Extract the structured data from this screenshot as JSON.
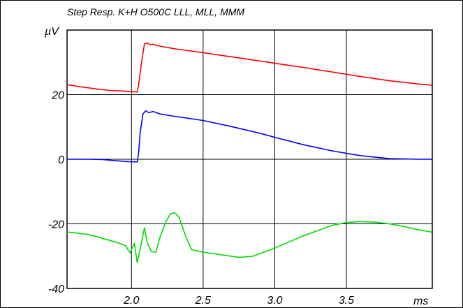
{
  "chart_data": {
    "type": "line",
    "title": "Step Resp. K+H O500C LLL, MLL, MMM",
    "ylabel": "µV",
    "xlabel": "ms",
    "xlim": [
      1.55,
      4.1
    ],
    "ylim": [
      -40,
      40
    ],
    "x_ticks": [
      2.0,
      2.5,
      3.0,
      3.5
    ],
    "x_tick_labels": [
      "2.0",
      "2.5",
      "3.0",
      "3.5"
    ],
    "y_ticks": [
      20,
      0,
      -20,
      -40
    ],
    "y_tick_labels": [
      "20",
      "0",
      "-20",
      "-40"
    ],
    "grid": true,
    "series": [
      {
        "color": "#ff0000",
        "points": [
          [
            1.55,
            23.1
          ],
          [
            1.65,
            22.4
          ],
          [
            1.75,
            21.8
          ],
          [
            1.85,
            21.3
          ],
          [
            1.95,
            21.1
          ],
          [
            2.04,
            20.8
          ],
          [
            2.05,
            23.0
          ],
          [
            2.07,
            30.0
          ],
          [
            2.09,
            35.7
          ],
          [
            2.11,
            36.0
          ],
          [
            2.13,
            35.5
          ],
          [
            2.15,
            35.6
          ],
          [
            2.2,
            35.0
          ],
          [
            2.3,
            34.2
          ],
          [
            2.5,
            33.0
          ],
          [
            2.7,
            31.7
          ],
          [
            2.9,
            30.4
          ],
          [
            3.0,
            29.7
          ],
          [
            3.2,
            28.4
          ],
          [
            3.4,
            27.0
          ],
          [
            3.6,
            25.6
          ],
          [
            3.8,
            24.3
          ],
          [
            4.0,
            23.3
          ],
          [
            4.1,
            22.9
          ]
        ]
      },
      {
        "color": "#0000ff",
        "points": [
          [
            1.55,
            0.0
          ],
          [
            1.7,
            0.0
          ],
          [
            1.8,
            -0.1
          ],
          [
            1.9,
            -0.5
          ],
          [
            2.0,
            -0.8
          ],
          [
            2.04,
            -0.8
          ],
          [
            2.05,
            2.0
          ],
          [
            2.06,
            8.0
          ],
          [
            2.08,
            14.0
          ],
          [
            2.1,
            15.0
          ],
          [
            2.12,
            14.4
          ],
          [
            2.15,
            14.8
          ],
          [
            2.2,
            14.0
          ],
          [
            2.3,
            13.3
          ],
          [
            2.5,
            12.0
          ],
          [
            2.7,
            10.1
          ],
          [
            2.9,
            8.0
          ],
          [
            3.0,
            6.8
          ],
          [
            3.2,
            4.5
          ],
          [
            3.4,
            2.6
          ],
          [
            3.6,
            1.1
          ],
          [
            3.8,
            0.2
          ],
          [
            4.0,
            0.0
          ],
          [
            4.1,
            0.0
          ]
        ]
      },
      {
        "color": "#00dd00",
        "points": [
          [
            1.55,
            -22.5
          ],
          [
            1.7,
            -23.3
          ],
          [
            1.8,
            -24.5
          ],
          [
            1.9,
            -25.8
          ],
          [
            1.96,
            -26.8
          ],
          [
            1.99,
            -29.0
          ],
          [
            2.02,
            -26.0
          ],
          [
            2.04,
            -32.0
          ],
          [
            2.06,
            -28.0
          ],
          [
            2.09,
            -21.2
          ],
          [
            2.11,
            -26.0
          ],
          [
            2.14,
            -28.6
          ],
          [
            2.17,
            -28.8
          ],
          [
            2.2,
            -24.0
          ],
          [
            2.24,
            -19.4
          ],
          [
            2.27,
            -17.0
          ],
          [
            2.3,
            -16.5
          ],
          [
            2.33,
            -17.8
          ],
          [
            2.38,
            -24.0
          ],
          [
            2.42,
            -28.0
          ],
          [
            2.5,
            -28.8
          ],
          [
            2.6,
            -29.4
          ],
          [
            2.75,
            -30.4
          ],
          [
            2.85,
            -30.0
          ],
          [
            3.0,
            -27.5
          ],
          [
            3.2,
            -23.7
          ],
          [
            3.4,
            -20.5
          ],
          [
            3.5,
            -19.6
          ],
          [
            3.6,
            -19.3
          ],
          [
            3.7,
            -19.5
          ],
          [
            3.8,
            -20.0
          ],
          [
            3.9,
            -20.8
          ],
          [
            4.0,
            -21.8
          ],
          [
            4.1,
            -22.6
          ]
        ]
      }
    ]
  }
}
